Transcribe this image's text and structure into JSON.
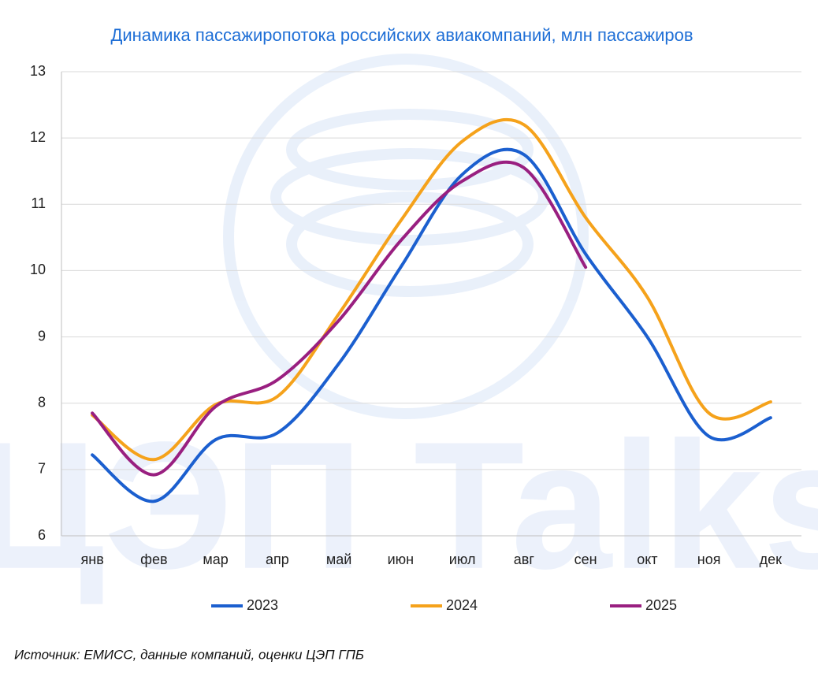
{
  "chart_data": {
    "type": "line",
    "title": "Динамика пассажиропотока российских авиакомпаний, млн пассажиров",
    "categories": [
      "янв",
      "фев",
      "мар",
      "апр",
      "май",
      "июн",
      "июл",
      "авг",
      "сен",
      "окт",
      "ноя",
      "дек"
    ],
    "series": [
      {
        "name": "2023",
        "color": "#1b5fcf",
        "values": [
          7.22,
          6.52,
          7.45,
          7.55,
          8.6,
          10.05,
          11.45,
          11.75,
          10.25,
          9.0,
          7.5,
          7.78
        ]
      },
      {
        "name": "2024",
        "color": "#f5a21b",
        "values": [
          7.82,
          7.15,
          7.98,
          8.1,
          9.35,
          10.75,
          11.95,
          12.2,
          10.8,
          9.6,
          7.85,
          8.02
        ]
      },
      {
        "name": "2025",
        "color": "#991f80",
        "values": [
          7.85,
          6.92,
          7.95,
          8.35,
          9.25,
          10.45,
          11.35,
          11.55,
          10.05,
          null,
          null,
          null
        ]
      }
    ],
    "ylim": [
      6,
      13
    ],
    "yticks": [
      6,
      7,
      8,
      9,
      10,
      11,
      12,
      13
    ],
    "grid": true,
    "legend": "bottom",
    "source": "Источник: ЕМИСС, данные компаний, оценки ЦЭП ГПБ",
    "watermark": "ЦЭП Talks"
  }
}
